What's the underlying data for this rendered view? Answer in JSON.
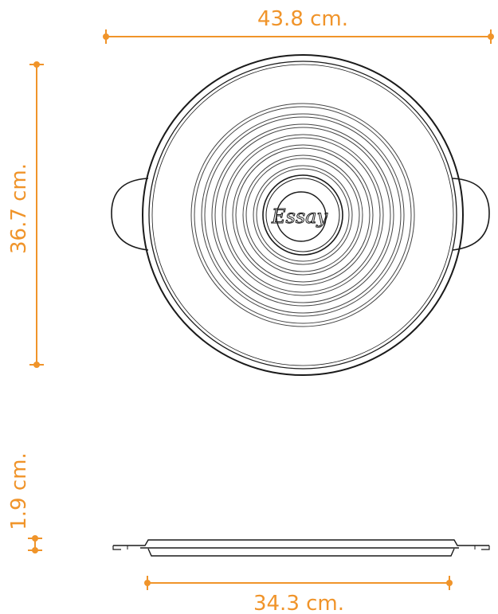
{
  "dimensions": {
    "width_label": "43.8 cm.",
    "height_label": "36.7 cm.",
    "depth_label": "1.9 cm.",
    "base_label": "34.3 cm."
  },
  "product": {
    "logo_text": "Essay"
  },
  "colors": {
    "dimension": "#f0942a",
    "outline": "#1a1a1a",
    "background": "#ffffff"
  }
}
